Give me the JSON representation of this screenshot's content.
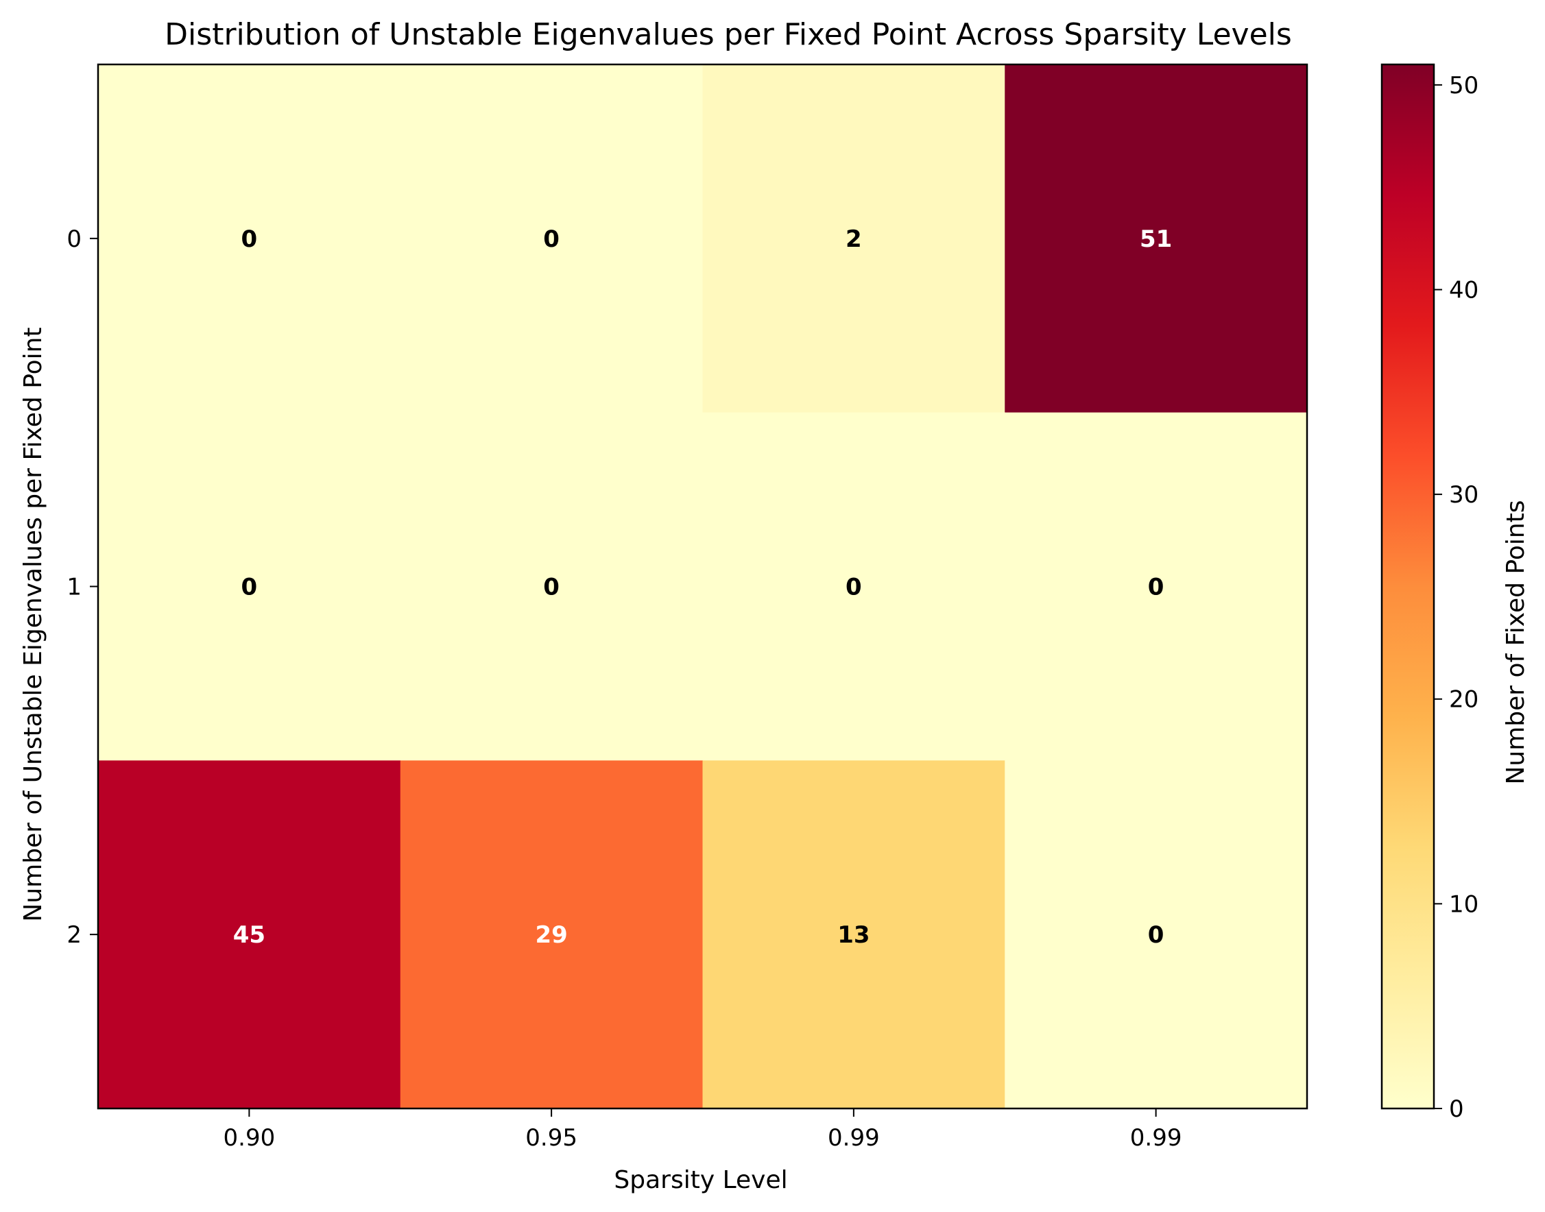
{
  "chart_data": {
    "type": "heatmap",
    "title": "Distribution of Unstable Eigenvalues per Fixed Point Across Sparsity Levels",
    "xlabel": "Sparsity Level",
    "ylabel": "Number of Unstable Eigenvalues per Fixed Point",
    "x_tick_labels": [
      "0.90",
      "0.95",
      "0.99",
      "0.99"
    ],
    "y_tick_labels": [
      "0",
      "1",
      "2"
    ],
    "values": [
      [
        0,
        0,
        2,
        51
      ],
      [
        0,
        0,
        0,
        0
      ],
      [
        45,
        29,
        13,
        0
      ]
    ],
    "colormap": "YlOrRd",
    "colormap_stops": [
      "#ffffcc",
      "#ffeda0",
      "#fed976",
      "#feb24c",
      "#fd8d3c",
      "#fc4e2a",
      "#e31a1c",
      "#bd0026",
      "#800026"
    ],
    "vmin": 0,
    "vmax": 51,
    "colorbar": {
      "label": "Number of Fixed Points",
      "ticks": [
        0,
        10,
        20,
        30,
        40,
        50
      ]
    },
    "grid": false
  }
}
